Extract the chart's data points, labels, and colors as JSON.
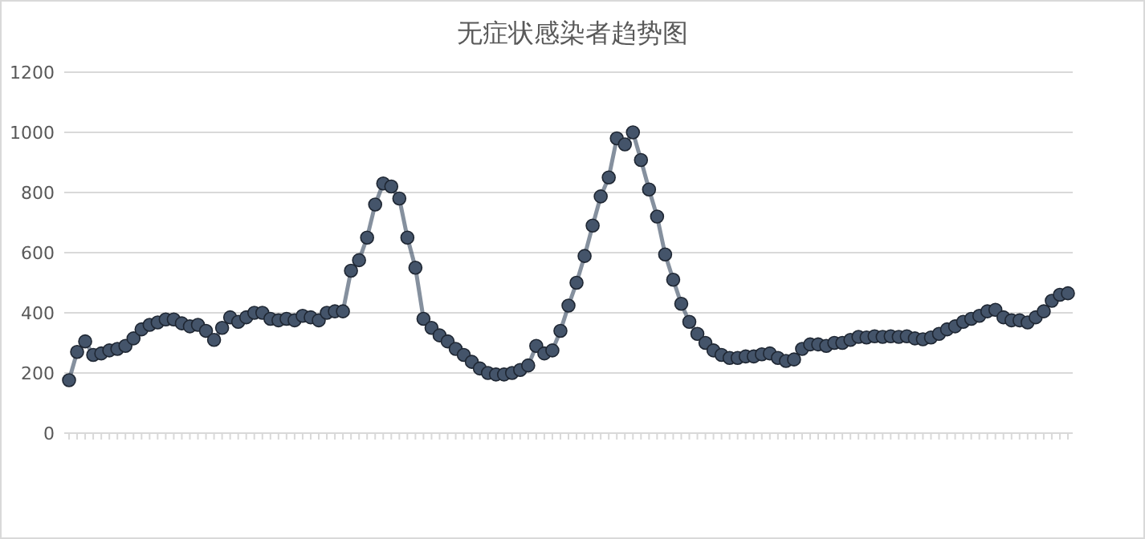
{
  "chart_data": {
    "type": "line",
    "title": "无症状感染者趋势图",
    "categories": [
      null,
      null,
      null,
      null,
      null,
      null,
      null,
      null,
      null,
      null,
      null,
      null,
      null,
      null,
      null,
      null,
      null,
      null,
      null,
      null,
      null,
      null,
      null,
      null,
      null,
      null,
      null,
      null,
      null,
      null,
      null,
      null,
      null,
      null,
      null,
      null,
      null,
      null,
      null,
      null,
      null,
      null,
      null,
      null,
      null,
      null,
      null,
      null,
      null,
      null,
      null,
      null,
      null,
      null,
      null,
      null,
      null,
      null,
      null,
      null,
      null,
      null,
      null,
      null,
      null,
      null,
      null,
      null,
      null,
      null,
      null,
      null,
      null,
      null,
      null,
      null,
      null,
      null,
      null,
      null,
      null,
      null,
      null,
      null,
      null,
      null,
      null,
      null,
      null,
      null,
      null,
      null,
      null,
      null,
      null,
      null,
      null,
      null,
      null,
      null,
      null,
      null,
      null,
      null,
      null,
      null,
      null,
      null,
      null,
      null,
      null,
      null,
      null,
      null,
      null,
      null,
      null,
      null,
      null,
      null,
      null,
      null,
      null,
      null,
      null
    ],
    "series": [
      {
        "color": "#44546a",
        "values": [
          176,
          270,
          305,
          260,
          265,
          275,
          280,
          290,
          315,
          345,
          360,
          368,
          378,
          378,
          365,
          355,
          360,
          340,
          310,
          350,
          385,
          370,
          385,
          400,
          400,
          380,
          375,
          380,
          375,
          390,
          385,
          375,
          400,
          405,
          405,
          540,
          575,
          650,
          760,
          830,
          820,
          780,
          650,
          550,
          380,
          350,
          325,
          305,
          280,
          260,
          237,
          215,
          200,
          195,
          195,
          200,
          210,
          225,
          290,
          265,
          275,
          340,
          424,
          500,
          589,
          690,
          787,
          850,
          980,
          960,
          1000,
          908,
          810,
          720,
          594,
          510,
          430,
          370,
          330,
          300,
          275,
          260,
          250,
          250,
          255,
          255,
          262,
          265,
          250,
          240,
          245,
          280,
          295,
          295,
          290,
          300,
          300,
          310,
          320,
          318,
          322,
          320,
          322,
          320,
          322,
          315,
          312,
          318,
          330,
          345,
          355,
          370,
          380,
          390,
          405,
          410,
          385,
          375,
          375,
          368,
          385,
          405,
          440,
          460,
          465
        ]
      }
    ],
    "ylim": [
      0,
      1200
    ],
    "yticks": [
      0,
      200,
      400,
      600,
      800,
      1000,
      1200
    ],
    "grid": "y",
    "marker": "circle",
    "line_style": "solid",
    "tick_labels": "y"
  }
}
